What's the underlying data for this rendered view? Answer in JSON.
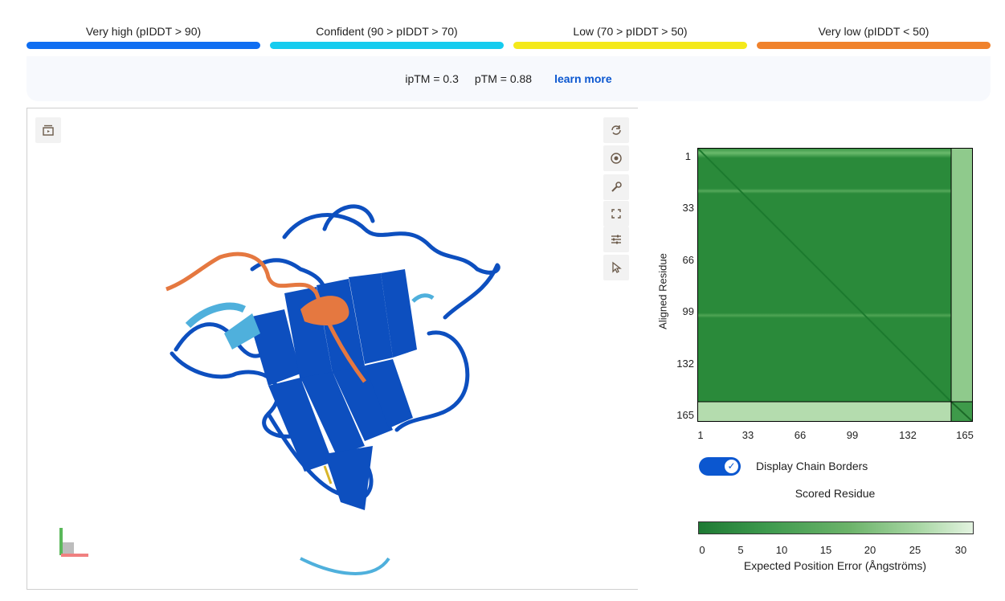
{
  "legend": [
    {
      "label": "Very high (pIDDT > 90)",
      "color": "#0f6ef2"
    },
    {
      "label": "Confident (90 > pIDDT > 70)",
      "color": "#15ccef"
    },
    {
      "label": "Low (70 > pIDDT > 50)",
      "color": "#f4e91a"
    },
    {
      "label": "Very low (pIDDT < 50)",
      "color": "#f0822c"
    }
  ],
  "metrics": {
    "iptm": "ipTM = 0.3",
    "ptm": "pTM = 0.88",
    "learn_more": "learn more"
  },
  "viewer": {
    "left_button_icon": "screenshot-icon",
    "toolbar_icons": [
      "refresh-icon",
      "camera-icon",
      "wrench-icon",
      "fullscreen-icon",
      "sliders-icon",
      "cursor-icon"
    ]
  },
  "pae": {
    "y_axis_label": "Aligned Residue",
    "x_axis_label": "Scored Residue",
    "ticks": [
      "1",
      "33",
      "66",
      "99",
      "132",
      "165"
    ],
    "toggle_label": "Display Chain Borders",
    "toggle_on": true,
    "colorbar_ticks": [
      "0",
      "5",
      "10",
      "15",
      "20",
      "25",
      "30"
    ],
    "colorbar_label": "Expected Position Error (Ångströms)"
  }
}
